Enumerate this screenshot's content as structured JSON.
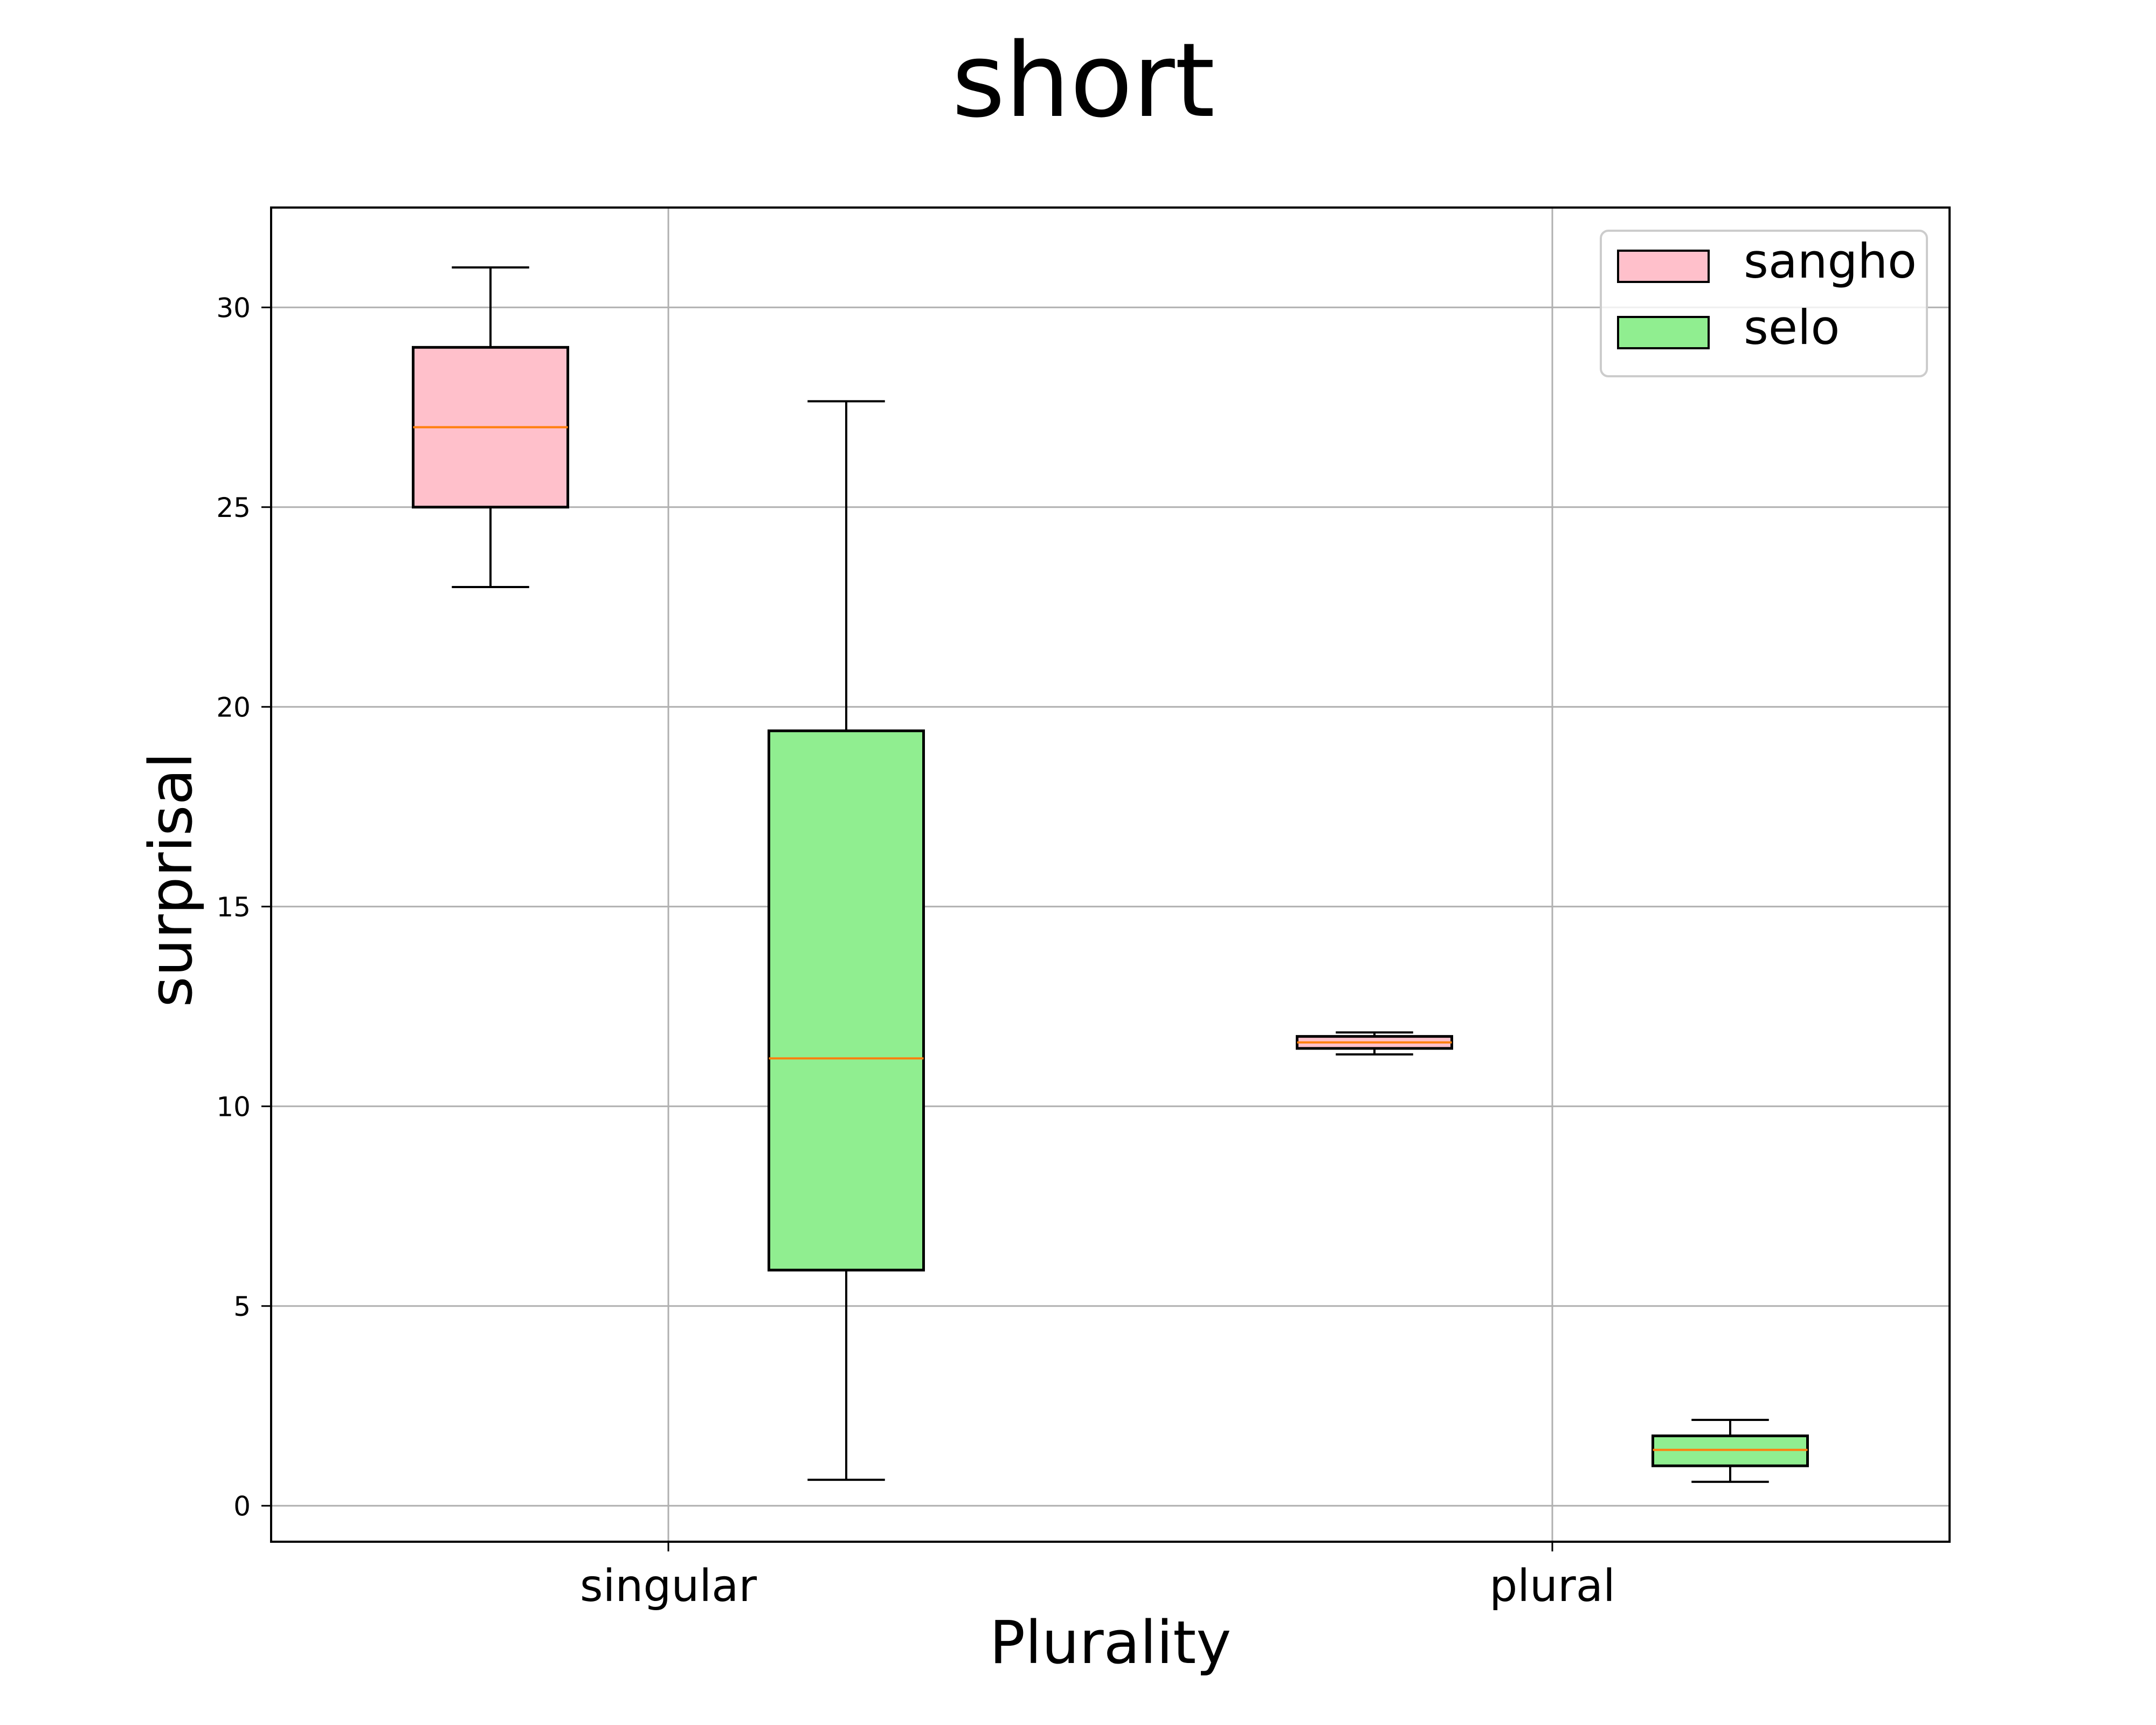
{
  "chart_data": {
    "type": "boxplot",
    "title": "short",
    "xlabel": "Plurality",
    "ylabel": "surprisal",
    "categories": [
      "singular",
      "plural"
    ],
    "ylim": [
      -0.9,
      32.5
    ],
    "yticks": [
      0,
      5,
      10,
      15,
      20,
      25,
      30
    ],
    "grid": true,
    "legend_position": "top-right",
    "median_color": "#ff7f0e",
    "series": [
      {
        "name": "sangho",
        "color": "#ffc0cb",
        "boxes": [
          {
            "category": "singular",
            "whisker_low": 23.0,
            "q1": 25.0,
            "median": 27.0,
            "q3": 29.0,
            "whisker_high": 31.0
          },
          {
            "category": "plural",
            "whisker_low": 11.3,
            "q1": 11.45,
            "median": 11.6,
            "q3": 11.75,
            "whisker_high": 11.85
          }
        ]
      },
      {
        "name": "selo",
        "color": "#90ee90",
        "boxes": [
          {
            "category": "singular",
            "whisker_low": 0.65,
            "q1": 5.9,
            "median": 11.2,
            "q3": 19.4,
            "whisker_high": 27.65
          },
          {
            "category": "plural",
            "whisker_low": 0.6,
            "q1": 1.0,
            "median": 1.4,
            "q3": 1.75,
            "whisker_high": 2.15
          }
        ]
      }
    ]
  }
}
